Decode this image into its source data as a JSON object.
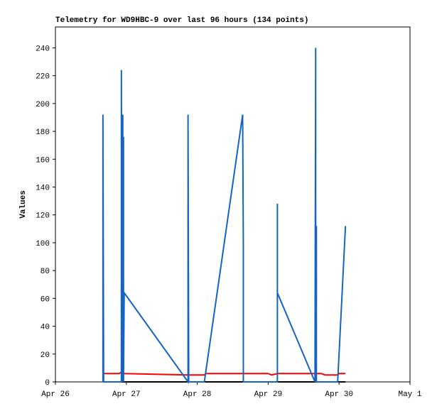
{
  "chart_data": {
    "type": "line",
    "title": "Telemetry for WD9HBC-9 over last 96 hours (134 points)",
    "y_label": "Values",
    "xlim": [
      0,
      5
    ],
    "ylim": [
      0,
      255
    ],
    "xticks": [
      {
        "value": 0,
        "label": "Apr 26"
      },
      {
        "value": 1,
        "label": "Apr 27"
      },
      {
        "value": 2,
        "label": "Apr 28"
      },
      {
        "value": 3,
        "label": "Apr 29"
      },
      {
        "value": 4,
        "label": "Apr 30"
      },
      {
        "value": 5,
        "label": "May 1"
      }
    ],
    "yticks": [
      0,
      20,
      40,
      60,
      80,
      100,
      120,
      140,
      160,
      180,
      200,
      220,
      240
    ],
    "series": [
      {
        "color": "#000000",
        "x": [
          0.67,
          4.09
        ],
        "values": [
          0,
          0
        ]
      },
      {
        "color": "#ff0000",
        "x": [
          0.67,
          0.9,
          0.93,
          0.96,
          1.87,
          2.1,
          2.12,
          3.0,
          3.05,
          3.13,
          3.75,
          3.8,
          3.98,
          4.0,
          4.09
        ],
        "values": [
          6,
          6,
          7,
          6,
          5,
          5,
          6,
          6,
          5,
          6,
          6,
          5,
          5,
          6,
          6
        ]
      },
      {
        "color": "#1565c0",
        "x": [
          0.67,
          0.67,
          0.67,
          0.68,
          0.93,
          0.93,
          0.94,
          0.95,
          0.95,
          0.96,
          0.96,
          0.97,
          1.87,
          1.87,
          1.88,
          2.1,
          2.64,
          2.65,
          2.65,
          3.13,
          3.13,
          3.13,
          3.66,
          3.67,
          3.67,
          3.68,
          3.68,
          3.98,
          4.09
        ],
        "values": [
          0,
          97,
          192,
          0,
          0,
          224,
          0,
          192,
          0,
          176,
          0,
          64,
          0,
          192,
          0,
          0,
          192,
          97,
          0,
          0,
          128,
          64,
          0,
          240,
          0,
          112,
          0,
          0,
          112
        ]
      }
    ]
  }
}
